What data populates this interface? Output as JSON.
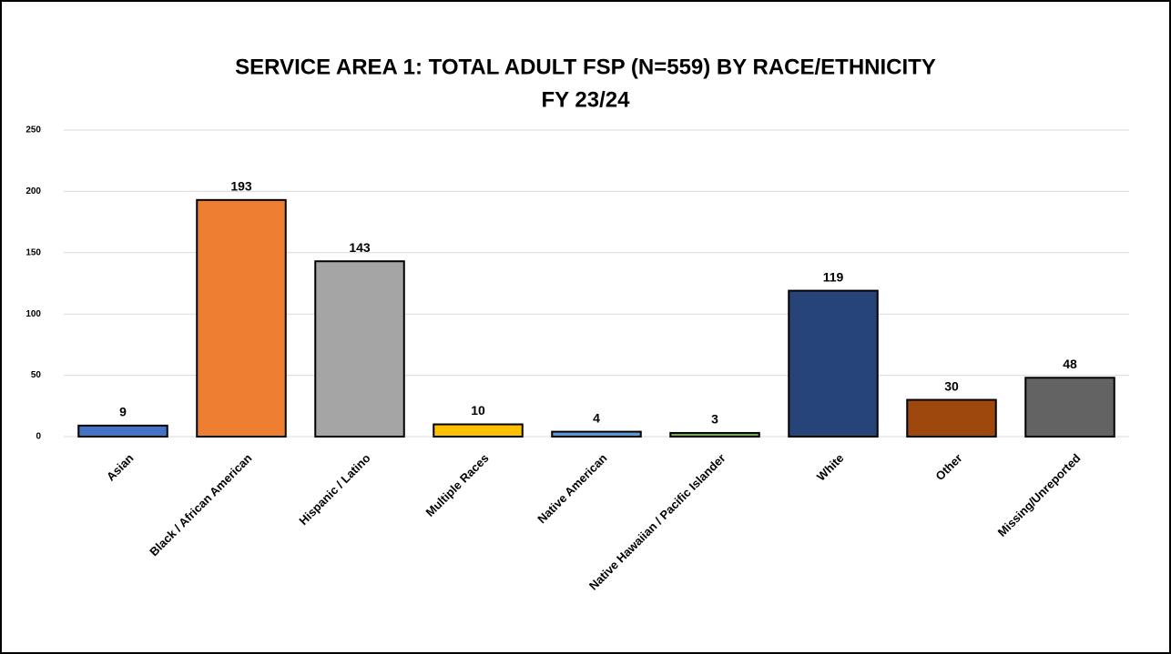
{
  "chart_data": {
    "type": "bar",
    "title": "SERVICE AREA 1: TOTAL ADULT FSP (N=559) BY RACE/ETHNICITY",
    "subtitle": "FY 23/24",
    "categories": [
      "Asian",
      "Black / African American",
      "Hispanic / Latino",
      "Multiple Races",
      "Native American",
      "Native Hawaiian / Pacific Islander",
      "White",
      "Other",
      "Missing/Unreported"
    ],
    "values": [
      9,
      193,
      143,
      10,
      4,
      3,
      119,
      30,
      48
    ],
    "colors": [
      "#4472c4",
      "#ed7d31",
      "#a5a5a5",
      "#ffc000",
      "#5b9bd5",
      "#70ad47",
      "#264478",
      "#9e480e",
      "#636363"
    ],
    "ylim": [
      0,
      250
    ],
    "yticks": [
      0,
      50,
      100,
      150,
      200,
      250
    ],
    "grid": true
  }
}
